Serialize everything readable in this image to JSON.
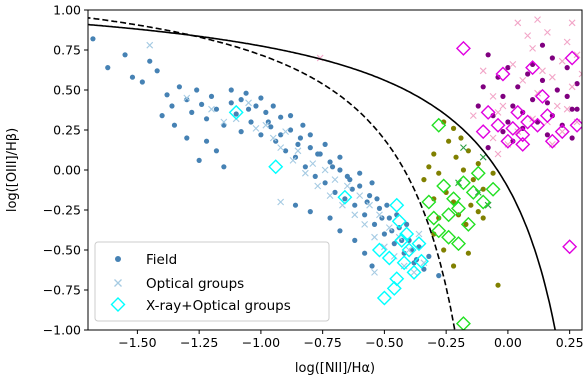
{
  "chart_data": {
    "type": "scatter",
    "xlabel": "log([NII]/Hα)",
    "ylabel": "log([OIII]/Hβ)",
    "xlim": [
      -1.7,
      0.3
    ],
    "ylim": [
      -1.0,
      1.0
    ],
    "x_ticks": [
      -1.5,
      -1.25,
      -1.0,
      -0.75,
      -0.5,
      -0.25,
      0.0,
      0.25
    ],
    "x_tick_labels": [
      "−1.50",
      "−1.25",
      "−1.00",
      "−0.75",
      "−0.50",
      "−0.25",
      "0.00",
      "0.25"
    ],
    "y_ticks": [
      -1.0,
      -0.75,
      -0.5,
      -0.25,
      0.0,
      0.25,
      0.5,
      0.75,
      1.0
    ],
    "y_tick_labels": [
      "−1.00",
      "−0.75",
      "−0.50",
      "−0.25",
      "0.00",
      "0.25",
      "0.50",
      "0.75",
      "1.00"
    ],
    "legend_position": "lower-left",
    "legend": [
      {
        "label": "Field",
        "marker": "circle",
        "color": "#4682b4"
      },
      {
        "label": "Optical groups",
        "marker": "x",
        "color": "#a6cbe3"
      },
      {
        "label": "X-ray+Optical groups",
        "marker": "diamond",
        "color": "#00ffff"
      }
    ],
    "demarcation_lines": [
      {
        "style": "solid",
        "formula": "0.61/(x-0.47)+1.19"
      },
      {
        "style": "dashed",
        "formula": "0.61/(x-0.05)+1.3"
      }
    ],
    "series": [
      {
        "name": "Field",
        "marker": "circle",
        "points": [
          [
            -1.68,
            0.82
          ],
          [
            -1.62,
            0.64
          ],
          [
            -1.55,
            0.72
          ],
          [
            -1.52,
            0.58
          ],
          [
            -1.48,
            0.55
          ],
          [
            -1.45,
            0.68
          ],
          [
            -1.42,
            0.62
          ],
          [
            -1.38,
            0.47
          ],
          [
            -1.36,
            0.4
          ],
          [
            -1.33,
            0.52
          ],
          [
            -1.3,
            0.44
          ],
          [
            -1.28,
            0.36
          ],
          [
            -1.26,
            0.5
          ],
          [
            -1.24,
            0.41
          ],
          [
            -1.22,
            0.32
          ],
          [
            -1.2,
            0.46
          ],
          [
            -1.18,
            0.38
          ],
          [
            -1.15,
            0.28
          ],
          [
            -1.12,
            0.42
          ],
          [
            -1.1,
            0.35
          ],
          [
            -1.08,
            0.24
          ],
          [
            -1.06,
            0.48
          ],
          [
            -1.04,
            0.3
          ],
          [
            -1.02,
            0.4
          ],
          [
            -1.0,
            0.22
          ],
          [
            -0.98,
            0.36
          ],
          [
            -0.96,
            0.27
          ],
          [
            -0.94,
            0.18
          ],
          [
            -0.92,
            0.33
          ],
          [
            -0.9,
            0.12
          ],
          [
            -0.88,
            0.25
          ],
          [
            -0.86,
            0.08
          ],
          [
            -0.84,
            0.2
          ],
          [
            -0.82,
            0.02
          ],
          [
            -0.8,
            0.14
          ],
          [
            -0.78,
            -0.04
          ],
          [
            -0.76,
            0.1
          ],
          [
            -0.74,
            -0.08
          ],
          [
            -0.72,
            0.05
          ],
          [
            -0.7,
            -0.14
          ],
          [
            -0.68,
            0.0
          ],
          [
            -0.66,
            -0.18
          ],
          [
            -0.64,
            -0.06
          ],
          [
            -0.62,
            -0.22
          ],
          [
            -0.6,
            -0.1
          ],
          [
            -0.58,
            -0.28
          ],
          [
            -0.56,
            -0.16
          ],
          [
            -0.54,
            -0.34
          ],
          [
            -0.52,
            -0.24
          ],
          [
            -0.5,
            -0.4
          ],
          [
            -0.48,
            -0.3
          ],
          [
            -0.46,
            -0.46
          ],
          [
            -0.44,
            -0.36
          ],
          [
            -0.42,
            -0.52
          ],
          [
            -0.4,
            -0.44
          ],
          [
            -0.38,
            -0.58
          ],
          [
            -0.36,
            -0.48
          ],
          [
            -0.34,
            -0.62
          ],
          [
            -0.32,
            -0.54
          ],
          [
            -0.3,
            -0.4
          ],
          [
            -0.28,
            -0.66
          ],
          [
            -0.26,
            -0.5
          ],
          [
            -1.12,
            0.5
          ],
          [
            -1.08,
            0.44
          ],
          [
            -1.05,
            0.38
          ],
          [
            -1.0,
            0.45
          ],
          [
            -0.97,
            0.3
          ],
          [
            -0.95,
            0.4
          ],
          [
            -0.92,
            0.22
          ],
          [
            -0.88,
            0.34
          ],
          [
            -0.85,
            0.16
          ],
          [
            -0.83,
            0.28
          ],
          [
            -0.8,
            0.22
          ],
          [
            -0.77,
            0.1
          ],
          [
            -0.74,
            0.16
          ],
          [
            -0.71,
            0.02
          ],
          [
            -0.68,
            0.08
          ],
          [
            -0.65,
            -0.04
          ],
          [
            -0.63,
            -0.12
          ],
          [
            -0.6,
            -0.02
          ],
          [
            -0.57,
            -0.2
          ],
          [
            -0.55,
            -0.08
          ],
          [
            -0.53,
            -0.18
          ],
          [
            -0.51,
            -0.3
          ],
          [
            -0.49,
            -0.22
          ],
          [
            -0.47,
            -0.38
          ],
          [
            -0.45,
            -0.28
          ],
          [
            -0.43,
            -0.44
          ],
          [
            -0.41,
            -0.34
          ],
          [
            -0.39,
            -0.5
          ],
          [
            -0.37,
            -0.56
          ],
          [
            -1.25,
            0.06
          ],
          [
            -1.22,
            0.18
          ],
          [
            -1.18,
            0.12
          ],
          [
            -1.15,
            0.02
          ],
          [
            -1.3,
            0.2
          ],
          [
            -1.35,
            0.28
          ],
          [
            -1.4,
            0.34
          ],
          [
            -0.86,
            -0.22
          ],
          [
            -0.8,
            -0.26
          ],
          [
            -0.72,
            -0.3
          ],
          [
            -0.68,
            -0.38
          ],
          [
            -0.62,
            -0.44
          ],
          [
            -0.58,
            -0.52
          ],
          [
            -0.55,
            -0.6
          ],
          [
            -0.26,
            0.3
          ],
          [
            -0.24,
            0.18
          ],
          [
            -0.22,
            0.26
          ],
          [
            -0.21,
            0.08
          ],
          [
            -0.19,
            0.2
          ],
          [
            -0.18,
            0.0
          ],
          [
            -0.16,
            0.12
          ],
          [
            -0.14,
            -0.06
          ],
          [
            -0.12,
            0.04
          ],
          [
            -0.1,
            -0.12
          ],
          [
            -0.08,
            0.14
          ],
          [
            -0.06,
            -0.02
          ],
          [
            -0.3,
            0.1
          ],
          [
            -0.28,
            -0.02
          ],
          [
            -0.32,
            0.02
          ],
          [
            -0.25,
            -0.14
          ],
          [
            -0.22,
            -0.2
          ],
          [
            -0.2,
            -0.28
          ],
          [
            -0.17,
            -0.34
          ],
          [
            -0.15,
            -0.22
          ],
          [
            -0.12,
            -0.26
          ],
          [
            -0.28,
            -0.3
          ],
          [
            -0.3,
            -0.18
          ],
          [
            -0.34,
            -0.06
          ],
          [
            -0.1,
            -0.3
          ],
          [
            -0.04,
            -0.72
          ],
          [
            -0.16,
            -0.52
          ],
          [
            -0.22,
            -0.6
          ],
          [
            -0.08,
            0.72
          ],
          [
            -0.04,
            0.58
          ],
          [
            -0.02,
            0.46
          ],
          [
            0.0,
            0.64
          ],
          [
            0.02,
            0.4
          ],
          [
            0.04,
            0.52
          ],
          [
            0.06,
            0.36
          ],
          [
            0.08,
            0.6
          ],
          [
            0.1,
            0.44
          ],
          [
            0.12,
            0.3
          ],
          [
            0.14,
            0.56
          ],
          [
            0.16,
            0.42
          ],
          [
            0.18,
            0.34
          ],
          [
            0.2,
            0.5
          ],
          [
            0.22,
            0.28
          ],
          [
            0.24,
            0.46
          ],
          [
            0.26,
            0.38
          ],
          [
            0.28,
            0.54
          ],
          [
            -0.06,
            0.34
          ],
          [
            -0.02,
            0.24
          ],
          [
            0.02,
            0.18
          ],
          [
            0.06,
            0.26
          ],
          [
            0.1,
            0.66
          ],
          [
            0.14,
            0.78
          ],
          [
            0.18,
            0.7
          ],
          [
            0.24,
            0.64
          ],
          [
            -0.1,
            0.52
          ],
          [
            -0.12,
            0.4
          ],
          [
            0.0,
            0.3
          ],
          [
            0.16,
            0.22
          ],
          [
            0.26,
            0.2
          ],
          [
            0.28,
            0.38
          ]
        ]
      },
      {
        "name": "Optical groups",
        "marker": "x",
        "points": [
          [
            -1.45,
            0.78
          ],
          [
            -1.3,
            0.45
          ],
          [
            -1.2,
            0.38
          ],
          [
            -1.15,
            0.3
          ],
          [
            -1.1,
            0.32
          ],
          [
            -1.05,
            0.42
          ],
          [
            -1.02,
            0.26
          ],
          [
            -0.98,
            0.28
          ],
          [
            -0.95,
            0.2
          ],
          [
            -0.92,
            0.14
          ],
          [
            -0.9,
            0.24
          ],
          [
            -0.87,
            0.06
          ],
          [
            -0.85,
            0.12
          ],
          [
            -0.82,
            -0.02
          ],
          [
            -0.79,
            0.04
          ],
          [
            -0.77,
            -0.1
          ],
          [
            -0.74,
            0.0
          ],
          [
            -0.72,
            -0.16
          ],
          [
            -0.7,
            -0.06
          ],
          [
            -0.67,
            -0.22
          ],
          [
            -0.65,
            -0.1
          ],
          [
            -0.62,
            -0.28
          ],
          [
            -0.6,
            -0.16
          ],
          [
            -0.58,
            -0.34
          ],
          [
            -0.56,
            -0.22
          ],
          [
            -0.54,
            -0.42
          ],
          [
            -0.52,
            -0.28
          ],
          [
            -0.5,
            -0.48
          ],
          [
            -0.48,
            -0.36
          ],
          [
            -0.46,
            -0.54
          ],
          [
            -0.44,
            -0.42
          ],
          [
            -0.42,
            -0.6
          ],
          [
            -0.4,
            -0.5
          ],
          [
            -0.38,
            -0.64
          ],
          [
            -0.36,
            -0.4
          ],
          [
            -0.34,
            -0.58
          ],
          [
            -0.92,
            -0.2
          ],
          [
            -0.76,
            0.7
          ],
          [
            -0.54,
            -0.64
          ],
          [
            -0.18,
            0.14
          ],
          [
            -0.14,
            0.34
          ],
          [
            -0.12,
            -0.14
          ],
          [
            -0.1,
            0.08
          ],
          [
            -0.06,
            0.2
          ],
          [
            -0.08,
            -0.22
          ],
          [
            -0.2,
            -0.08
          ],
          [
            -0.02,
            0.4
          ],
          [
            -0.04,
            0.1
          ],
          [
            -0.04,
            0.36
          ],
          [
            0.02,
            0.66
          ],
          [
            0.06,
            0.56
          ],
          [
            0.1,
            0.76
          ],
          [
            0.12,
            0.48
          ],
          [
            0.16,
            0.86
          ],
          [
            0.18,
            0.58
          ],
          [
            0.2,
            0.4
          ],
          [
            0.22,
            0.68
          ],
          [
            0.24,
            0.8
          ],
          [
            0.26,
            0.52
          ],
          [
            0.28,
            0.3
          ],
          [
            0.04,
            0.92
          ],
          [
            0.08,
            0.84
          ],
          [
            0.14,
            0.62
          ],
          [
            0.22,
            0.24
          ],
          [
            0.26,
            0.92
          ],
          [
            0.28,
            0.72
          ],
          [
            0.0,
            0.16
          ],
          [
            -0.06,
            0.46
          ],
          [
            0.18,
            0.16
          ],
          [
            0.12,
            0.94
          ],
          [
            0.3,
            0.6
          ],
          [
            0.24,
            0.38
          ],
          [
            0.16,
            0.3
          ],
          [
            0.04,
            0.24
          ],
          [
            0.1,
            0.32
          ],
          [
            -0.1,
            0.62
          ]
        ]
      },
      {
        "name": "X-ray+Optical groups",
        "marker": "diamond",
        "points": [
          [
            -1.1,
            0.36
          ],
          [
            -0.94,
            0.02
          ],
          [
            -0.66,
            -0.17
          ],
          [
            -0.48,
            -0.55
          ],
          [
            -0.45,
            -0.22
          ],
          [
            -0.44,
            -0.32
          ],
          [
            -0.43,
            -0.44
          ],
          [
            -0.42,
            -0.58
          ],
          [
            -0.41,
            -0.4
          ],
          [
            -0.4,
            -0.5
          ],
          [
            -0.38,
            -0.64
          ],
          [
            -0.36,
            -0.46
          ],
          [
            -0.46,
            -0.74
          ],
          [
            -0.5,
            -0.8
          ],
          [
            -0.52,
            -0.5
          ],
          [
            -0.45,
            -0.68
          ],
          [
            -0.35,
            -0.57
          ],
          [
            -0.28,
            0.28
          ],
          [
            -0.26,
            -0.1
          ],
          [
            -0.24,
            -0.28
          ],
          [
            -0.22,
            -0.18
          ],
          [
            -0.2,
            -0.24
          ],
          [
            -0.18,
            -0.08
          ],
          [
            -0.16,
            -0.34
          ],
          [
            -0.14,
            -0.14
          ],
          [
            -0.12,
            -0.02
          ],
          [
            -0.1,
            -0.2
          ],
          [
            -0.06,
            -0.12
          ],
          [
            -0.24,
            -0.42
          ],
          [
            -0.2,
            -0.46
          ],
          [
            -0.28,
            -0.38
          ],
          [
            -0.3,
            -0.3
          ],
          [
            -0.32,
            -0.2
          ],
          [
            -0.18,
            -0.96
          ],
          [
            -0.18,
            0.76
          ],
          [
            -0.08,
            0.36
          ],
          [
            -0.04,
            0.28
          ],
          [
            -0.02,
            0.6
          ],
          [
            0.0,
            0.18
          ],
          [
            0.02,
            0.26
          ],
          [
            0.04,
            0.36
          ],
          [
            0.06,
            0.22
          ],
          [
            0.08,
            0.3
          ],
          [
            0.1,
            0.64
          ],
          [
            0.12,
            0.28
          ],
          [
            0.14,
            0.46
          ],
          [
            0.16,
            0.34
          ],
          [
            0.18,
            0.18
          ],
          [
            0.26,
            0.7
          ],
          [
            0.28,
            0.28
          ],
          [
            0.25,
            -0.48
          ],
          [
            -0.1,
            0.24
          ],
          [
            0.06,
            0.16
          ],
          [
            0.22,
            0.24
          ]
        ]
      }
    ]
  }
}
